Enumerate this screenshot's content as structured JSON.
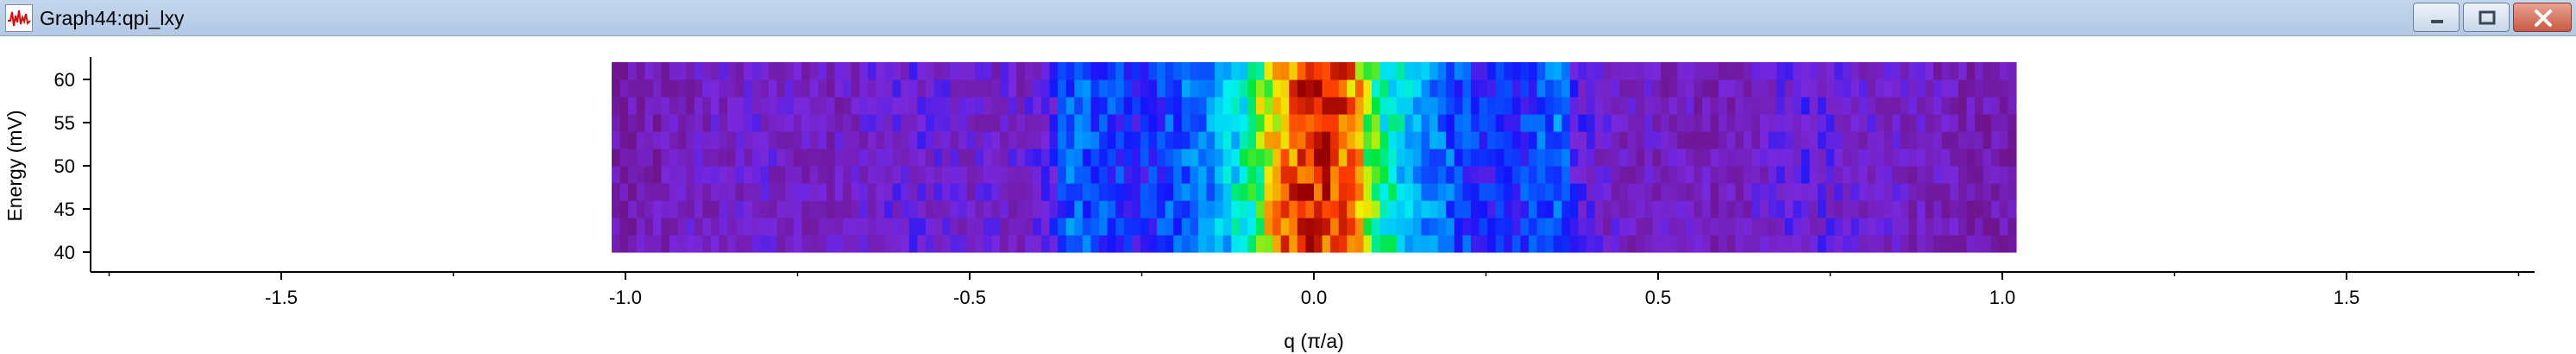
{
  "window": {
    "title": "Graph44:qpi_lxy",
    "icon": "graph-app-icon",
    "buttons": [
      "minimize-icon",
      "maximize-icon",
      "close-icon"
    ]
  },
  "colors": {
    "titlebar": "#b8cde6",
    "close_button": "#c75a43",
    "axis": "#000000",
    "icon_trace": "#d01010"
  },
  "chart_data": {
    "type": "heatmap",
    "title": "",
    "xlabel": "q (π/a)",
    "ylabel": "Energy (mV)",
    "xlim": [
      -1.8,
      1.8
    ],
    "ylim": [
      38,
      62
    ],
    "x_ticks": [
      "-1.5",
      "-1.0",
      "-0.5",
      "0.0",
      "0.5",
      "1.0",
      "1.5"
    ],
    "x_tick_values": [
      -1.5,
      -1.0,
      -0.5,
      0.0,
      0.5,
      1.0,
      1.5
    ],
    "y_ticks": [
      "40",
      "45",
      "50",
      "55",
      "60"
    ],
    "y_tick_values": [
      40,
      45,
      50,
      55,
      60
    ],
    "data_x_range": [
      -1.02,
      1.02
    ],
    "data_y_range": [
      38,
      62
    ],
    "colormap": "rainbow (purple-blue-cyan-green-yellow-red)",
    "energy_rows": [
      40,
      42,
      44,
      46,
      48,
      50,
      52,
      54,
      56,
      58,
      60,
      62
    ],
    "intensity_profile": {
      "q": [
        -1.02,
        -0.9,
        -0.8,
        -0.7,
        -0.6,
        -0.5,
        -0.42,
        -0.38,
        -0.36,
        -0.3,
        -0.25,
        -0.2,
        -0.15,
        -0.1,
        -0.05,
        0.0,
        0.05,
        0.1,
        0.15,
        0.2,
        0.25,
        0.3,
        0.36,
        0.38,
        0.42,
        0.5,
        0.6,
        0.7,
        0.8,
        0.9,
        1.02
      ],
      "value": [
        0.05,
        0.12,
        0.15,
        0.12,
        0.18,
        0.15,
        0.14,
        0.22,
        0.4,
        0.35,
        0.3,
        0.38,
        0.45,
        0.6,
        0.85,
        0.95,
        0.88,
        0.62,
        0.48,
        0.38,
        0.3,
        0.32,
        0.42,
        0.22,
        0.14,
        0.12,
        0.1,
        0.2,
        0.14,
        0.12,
        0.05
      ]
    }
  }
}
